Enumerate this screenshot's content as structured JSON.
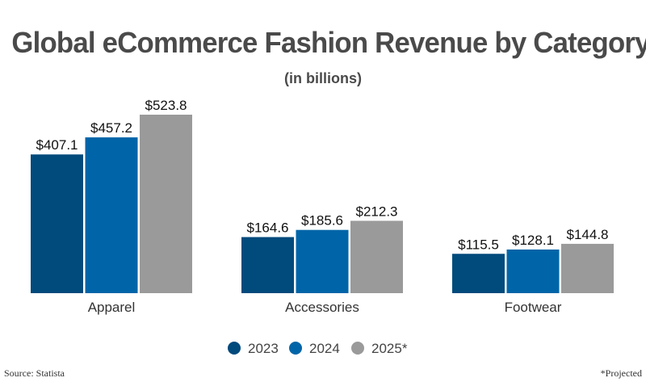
{
  "chart_data": {
    "type": "bar",
    "title": "Global eCommerce Fashion Revenue by Category",
    "subtitle": "(in billions)",
    "categories": [
      "Apparel",
      "Accessories",
      "Footwear"
    ],
    "series": [
      {
        "name": "2023",
        "color": "#004a7c",
        "values": [
          407.1,
          164.6,
          115.5
        ],
        "labels": [
          "$407.1",
          "$164.6",
          "$115.5"
        ]
      },
      {
        "name": "2024",
        "color": "#0065a8",
        "values": [
          457.2,
          185.6,
          128.1
        ],
        "labels": [
          "$457.2",
          "$185.6",
          "$128.1"
        ]
      },
      {
        "name": "2025*",
        "color": "#9a9a9a",
        "values": [
          523.8,
          212.3,
          144.8
        ],
        "labels": [
          "$523.8",
          "$212.3",
          "$144.8"
        ]
      }
    ],
    "ylim": [
      0,
      523.8
    ],
    "grid": false,
    "legend_position": "bottom",
    "source": "Source: Statista",
    "footnote": "*Projected"
  }
}
